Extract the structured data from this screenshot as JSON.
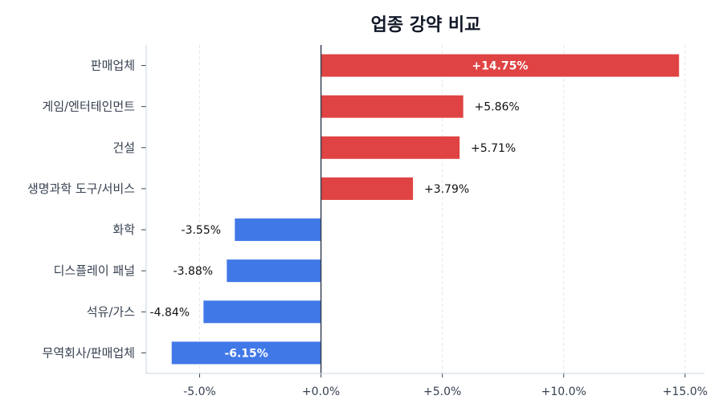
{
  "chart_data": {
    "type": "bar",
    "orientation": "horizontal",
    "title": "업종 강약 비교",
    "xlabel": "",
    "ylabel": "",
    "categories": [
      "판매업체",
      "게임/엔터테인먼트",
      "건설",
      "생명과학 도구/서비스",
      "화학",
      "디스플레이 패널",
      "석유/가스",
      "무역회사/판매업체"
    ],
    "values": [
      14.75,
      5.86,
      5.71,
      3.79,
      -3.55,
      -3.88,
      -4.84,
      -6.15
    ],
    "data_labels": [
      "+14.75%",
      "+5.86%",
      "+5.71%",
      "+3.79%",
      "-3.55%",
      "-3.88%",
      "-4.84%",
      "-6.15%"
    ],
    "xlim": [
      -7.2,
      15.8
    ],
    "xticks": [
      -5,
      0,
      5,
      10,
      15
    ],
    "xtick_labels": [
      "-5.0%",
      "+0.0%",
      "+5.0%",
      "+10.0%",
      "+15.0%"
    ],
    "grid": "vertical dashed",
    "colors": {
      "positive": "#e04343",
      "negative": "#4178e8",
      "zero_line": "#374151"
    }
  }
}
